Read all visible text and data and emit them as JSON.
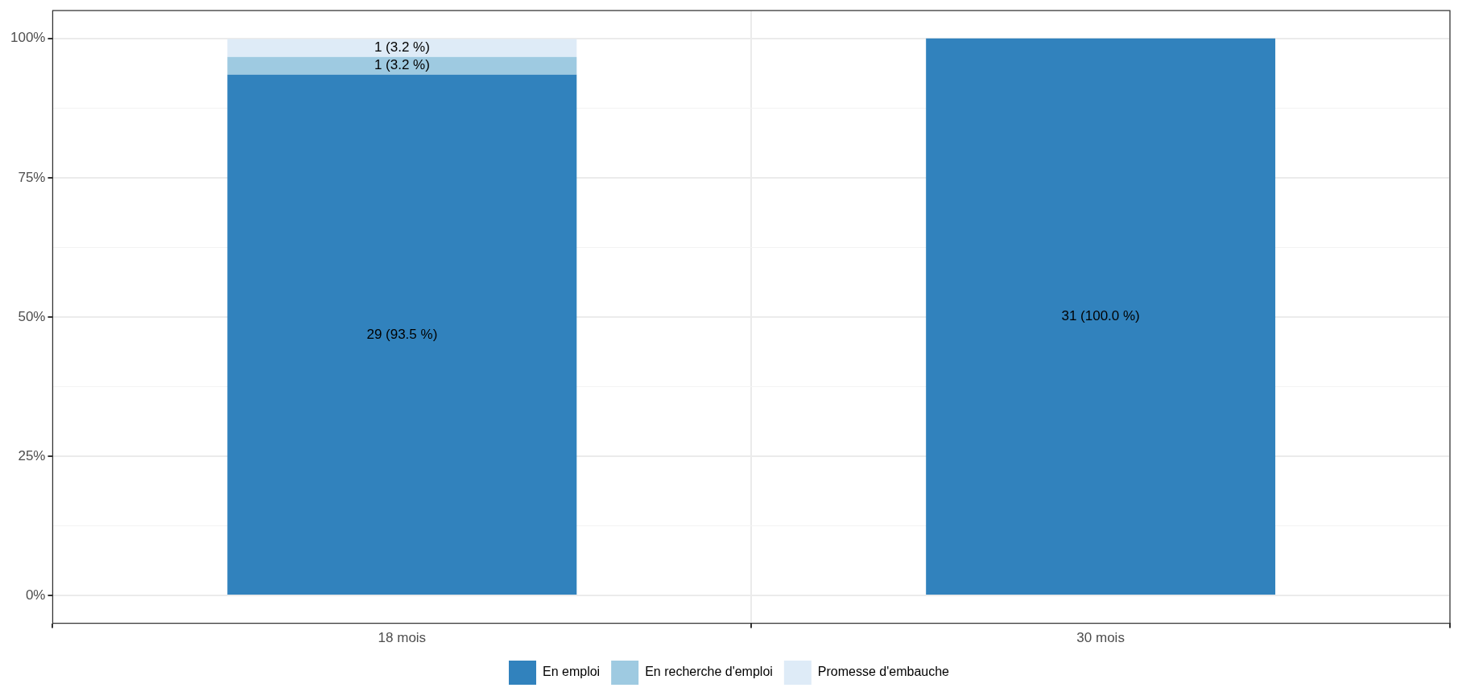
{
  "chart_data": {
    "type": "bar",
    "stacked": true,
    "categories": [
      "18 mois",
      "30 mois"
    ],
    "series": [
      {
        "name": "En emploi",
        "color": "#3182bd",
        "values": [
          93.5,
          100
        ],
        "value_labels": [
          "29 (93.5 %)",
          "31 (100.0 %)"
        ]
      },
      {
        "name": "En recherche d'emploi",
        "color": "#9ecae1",
        "values": [
          3.2,
          0
        ],
        "value_labels": [
          "1 (3.2 %)",
          null
        ]
      },
      {
        "name": "Promesse d'embauche",
        "color": "#deebf7",
        "values": [
          3.2,
          0
        ],
        "value_labels": [
          "1 (3.2 %)",
          null
        ]
      }
    ],
    "ylim": [
      -5,
      105
    ],
    "yticks": [
      {
        "value": 0,
        "label": "0%"
      },
      {
        "value": 12.5,
        "label": null
      },
      {
        "value": 25,
        "label": "25%"
      },
      {
        "value": 37.5,
        "label": null
      },
      {
        "value": 50,
        "label": "50%"
      },
      {
        "value": 62.5,
        "label": null
      },
      {
        "value": 75,
        "label": "75%"
      },
      {
        "value": 87.5,
        "label": null
      },
      {
        "value": 100,
        "label": "100%"
      }
    ],
    "grid": true,
    "legend": "bottom"
  }
}
